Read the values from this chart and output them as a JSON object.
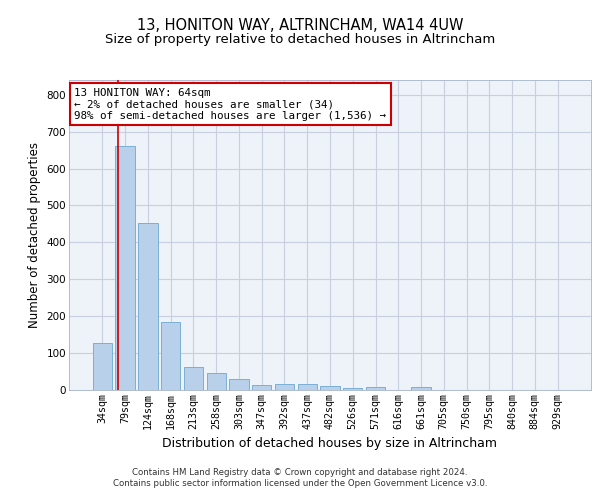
{
  "title": "13, HONITON WAY, ALTRINCHAM, WA14 4UW",
  "subtitle": "Size of property relative to detached houses in Altrincham",
  "xlabel": "Distribution of detached houses by size in Altrincham",
  "ylabel": "Number of detached properties",
  "categories": [
    "34sqm",
    "79sqm",
    "124sqm",
    "168sqm",
    "213sqm",
    "258sqm",
    "303sqm",
    "347sqm",
    "392sqm",
    "437sqm",
    "482sqm",
    "526sqm",
    "571sqm",
    "616sqm",
    "661sqm",
    "705sqm",
    "750sqm",
    "795sqm",
    "840sqm",
    "884sqm",
    "929sqm"
  ],
  "values": [
    128,
    660,
    452,
    183,
    62,
    47,
    30,
    13,
    15,
    15,
    10,
    5,
    8,
    0,
    8,
    0,
    0,
    0,
    0,
    0,
    0
  ],
  "bar_color": "#b8d0ea",
  "bar_edge_color": "#7aafd4",
  "ylim": [
    0,
    840
  ],
  "yticks": [
    0,
    100,
    200,
    300,
    400,
    500,
    600,
    700,
    800
  ],
  "annotation_text": "13 HONITON WAY: 64sqm\n← 2% of detached houses are smaller (34)\n98% of semi-detached houses are larger (1,536) →",
  "annotation_box_color": "#ffffff",
  "annotation_box_edge": "#cc0000",
  "red_line_x": 0.667,
  "footer_line1": "Contains HM Land Registry data © Crown copyright and database right 2024.",
  "footer_line2": "Contains public sector information licensed under the Open Government Licence v3.0.",
  "bg_color": "#eef2f9",
  "grid_color": "#c8d0df",
  "title_fontsize": 10.5,
  "subtitle_fontsize": 9.5,
  "tick_fontsize": 7.2,
  "ylabel_fontsize": 8.5,
  "xlabel_fontsize": 9.0,
  "footer_fontsize": 6.2,
  "annotation_fontsize": 7.8
}
